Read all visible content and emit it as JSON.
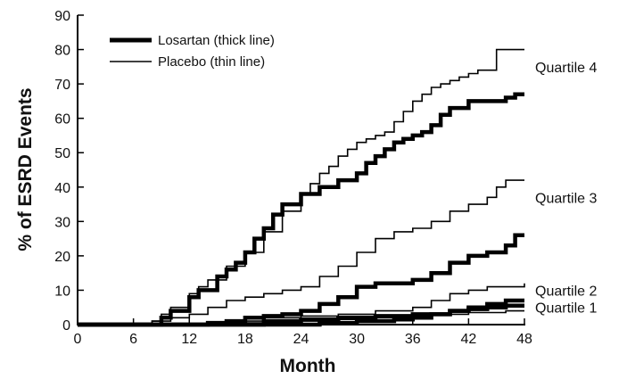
{
  "chart_data": {
    "type": "line",
    "xlabel": "Month",
    "ylabel": "% of ESRD Events",
    "xlim": [
      0,
      48
    ],
    "ylim": [
      0,
      90
    ],
    "x_ticks": [
      "0",
      "6",
      "12",
      "18",
      "24",
      "30",
      "36",
      "42",
      "48"
    ],
    "y_ticks": [
      "0",
      "10",
      "20",
      "30",
      "40",
      "50",
      "60",
      "70",
      "80",
      "90"
    ],
    "grid": false,
    "legend_position": "top-left",
    "legend": [
      {
        "label": "Losartan (thick line)",
        "style": "thick"
      },
      {
        "label": "Placebo (thin line)",
        "style": "thin"
      }
    ],
    "groups": [
      {
        "label": "Quartile 4",
        "label_y": 75,
        "series": [
          {
            "style": "thick",
            "x": [
              0,
              8,
              9,
              10,
              12,
              13,
              15,
              16,
              17,
              18,
              19,
              20,
              21,
              22,
              24,
              26,
              28,
              30,
              31,
              32,
              33,
              34,
              35,
              36,
              37,
              38,
              39,
              40,
              42,
              44,
              46,
              47,
              48
            ],
            "y": [
              0,
              0,
              2,
              4,
              8,
              10,
              14,
              16,
              18,
              21,
              25,
              28,
              32,
              35,
              38,
              40,
              42,
              44,
              47,
              49,
              51,
              53,
              54,
              55,
              56,
              58,
              61,
              63,
              65,
              65,
              66,
              67,
              67
            ]
          },
          {
            "style": "thin",
            "x": [
              0,
              7,
              8,
              9,
              10,
              12,
              13,
              14,
              16,
              18,
              20,
              22,
              24,
              25,
              26,
              27,
              28,
              29,
              30,
              31,
              32,
              33,
              34,
              35,
              36,
              37,
              38,
              39,
              40,
              41,
              42,
              43,
              44,
              45,
              46,
              47,
              48
            ],
            "y": [
              0,
              0,
              1,
              3,
              5,
              9,
              11,
              13,
              17,
              21,
              27,
              33,
              38,
              41,
              44,
              46,
              49,
              51,
              53,
              54,
              55,
              56,
              59,
              62,
              65,
              67,
              69,
              70,
              71,
              72,
              73,
              74,
              74,
              80,
              80,
              80,
              80
            ]
          }
        ]
      },
      {
        "label": "Quartile 3",
        "label_y": 37,
        "series": [
          {
            "style": "thick",
            "x": [
              0,
              12,
              14,
              16,
              18,
              20,
              22,
              24,
              26,
              28,
              30,
              32,
              34,
              36,
              38,
              40,
              42,
              44,
              46,
              47,
              48
            ],
            "y": [
              0,
              0,
              0.5,
              1,
              2,
              2.5,
              3,
              4,
              6,
              8,
              11,
              12,
              12,
              13,
              15,
              18,
              20,
              21,
              23,
              26,
              26
            ]
          },
          {
            "style": "thin",
            "x": [
              0,
              6,
              8,
              10,
              12,
              14,
              16,
              18,
              20,
              22,
              24,
              26,
              28,
              30,
              32,
              34,
              36,
              38,
              40,
              42,
              44,
              45,
              46,
              47,
              48
            ],
            "y": [
              0,
              0,
              1,
              2,
              3,
              5,
              7,
              8,
              9,
              10,
              11,
              14,
              17,
              21,
              25,
              27,
              28,
              30,
              33,
              35,
              37,
              40,
              42,
              42,
              42
            ]
          }
        ]
      },
      {
        "label": "Quartile 2",
        "label_y": 10,
        "series": [
          {
            "style": "thick",
            "x": [
              0,
              16,
              20,
              24,
              28,
              32,
              36,
              40,
              42,
              44,
              46,
              48
            ],
            "y": [
              0,
              0,
              1,
              1.5,
              2,
              2.5,
              3,
              4,
              5,
              6,
              7,
              7
            ]
          },
          {
            "style": "thin",
            "x": [
              0,
              12,
              16,
              20,
              24,
              28,
              32,
              36,
              38,
              40,
              42,
              44,
              46,
              48
            ],
            "y": [
              0,
              0,
              1,
              2,
              2.5,
              3,
              4,
              5,
              7,
              9,
              10,
              11,
              11,
              12
            ]
          }
        ]
      },
      {
        "label": "Quartile 1",
        "label_y": 5,
        "series": [
          {
            "style": "thick",
            "x": [
              0,
              20,
              26,
              30,
              34,
              36,
              38,
              40,
              42,
              44,
              46,
              48
            ],
            "y": [
              0,
              0,
              0.5,
              1,
              1.5,
              2,
              3,
              4,
              4.5,
              5,
              5.5,
              5.5
            ]
          },
          {
            "style": "thin",
            "x": [
              0,
              14,
              18,
              22,
              26,
              30,
              34,
              38,
              42,
              46,
              48
            ],
            "y": [
              0,
              0,
              0.5,
              1,
              1.5,
              2,
              2.5,
              3,
              3.5,
              4,
              4
            ]
          }
        ]
      }
    ]
  }
}
